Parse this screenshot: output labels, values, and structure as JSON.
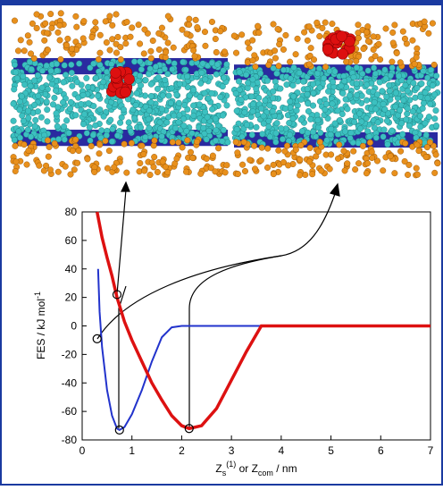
{
  "chart_data": {
    "type": "line",
    "y_label": [
      "FES / kJ mol",
      "-1"
    ],
    "x_label": [
      "Z",
      "s",
      "(1)",
      " or Z",
      "com",
      " / nm"
    ],
    "xlim": [
      0,
      7
    ],
    "xticks": [
      0,
      1,
      2,
      3,
      4,
      5,
      6,
      7
    ],
    "ylim": [
      -80,
      80
    ],
    "yticks": [
      -80,
      -60,
      -40,
      -20,
      0,
      20,
      40,
      60,
      80
    ],
    "series": [
      {
        "color": "#2233cc",
        "x": [
          0.32,
          0.35,
          0.4,
          0.5,
          0.6,
          0.7,
          0.75,
          0.85,
          1.0,
          1.2,
          1.4,
          1.6,
          1.8,
          2.0,
          3.0,
          4.0,
          5.0,
          6.0,
          7.0
        ],
        "values": [
          40,
          10,
          -15,
          -45,
          -63,
          -72,
          -73,
          -71,
          -62,
          -45,
          -25,
          -8,
          -1,
          0,
          0,
          0,
          0,
          0,
          0
        ]
      },
      {
        "color": "#dd1111",
        "x": [
          0.3,
          0.4,
          0.5,
          0.6,
          0.7,
          0.85,
          1.0,
          1.2,
          1.4,
          1.6,
          1.8,
          2.0,
          2.15,
          2.4,
          2.7,
          3.0,
          3.3,
          3.6,
          4.0,
          5.0,
          6.0,
          7.0
        ],
        "values": [
          80,
          62,
          48,
          35,
          20,
          3,
          -10,
          -25,
          -40,
          -52,
          -63,
          -70,
          -72,
          -70,
          -58,
          -38,
          -18,
          0,
          0,
          0,
          0,
          0
        ]
      }
    ],
    "markers": {
      "x": [
        0.3,
        0.7,
        0.75,
        2.15
      ],
      "values": [
        -9,
        22,
        -73,
        -72
      ]
    }
  }
}
